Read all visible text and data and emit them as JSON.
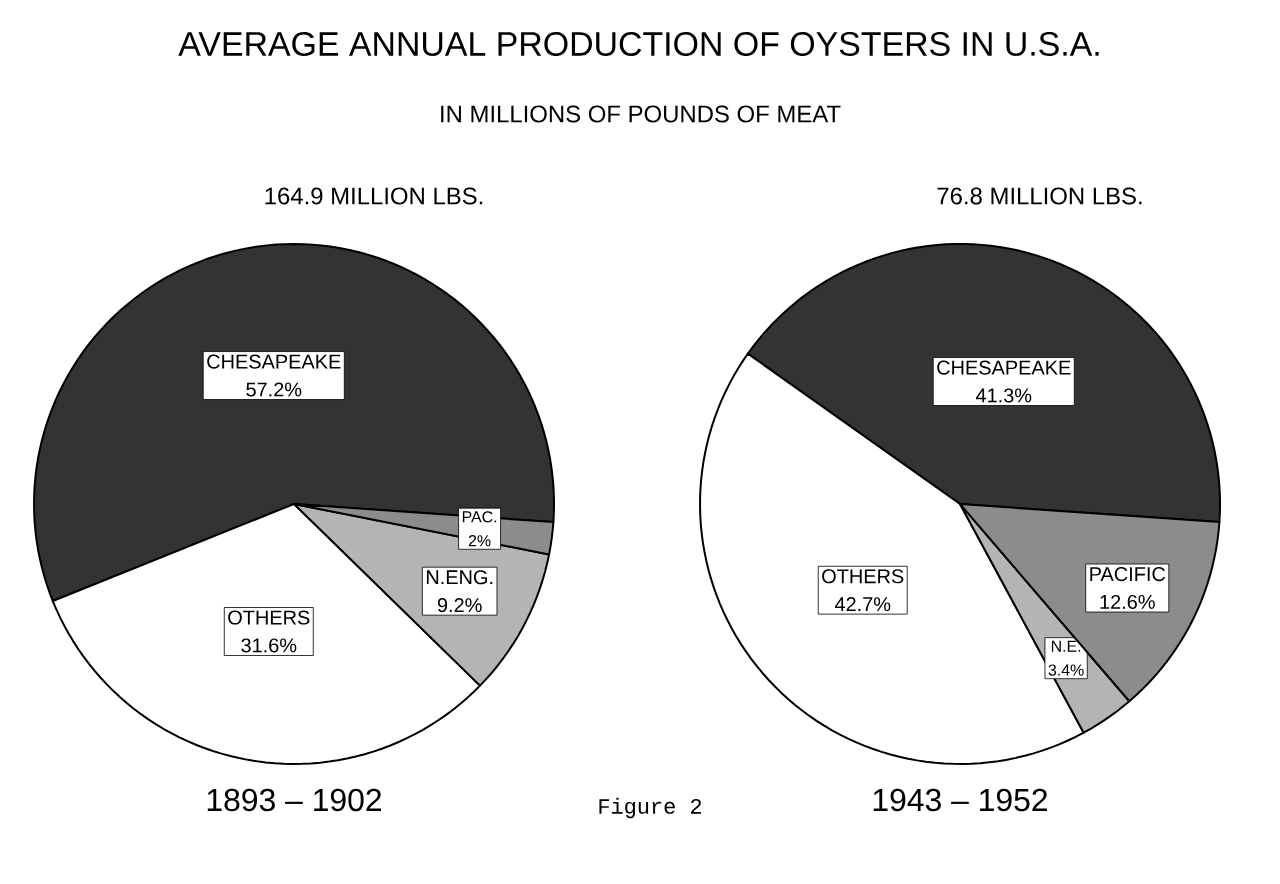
{
  "chart_data": [
    {
      "type": "pie",
      "title": "164.9 MILLION LBS.",
      "xlabel": "1893 – 1902",
      "categories": [
        "CHESAPEAKE",
        "OTHERS",
        "N.ENG.",
        "PAC."
      ],
      "values": [
        57.2,
        31.6,
        9.2,
        2
      ],
      "value_labels": [
        "57.2%",
        "31.6%",
        "9.2%",
        "2%"
      ],
      "colors": [
        "#333333",
        "#ffffff",
        "#b4b4b4",
        "#8c8c8c"
      ],
      "annotations": [
        "AVERAGE ANNUAL PRODUCTION OF OYSTERS IN U.S.A.",
        "IN MILLIONS OF POUNDS OF MEAT",
        "Figure 2"
      ]
    },
    {
      "type": "pie",
      "title": "76.8 MILLION LBS.",
      "xlabel": "1943 – 1952",
      "categories": [
        "CHESAPEAKE",
        "OTHERS",
        "N.E.",
        "PACIFIC"
      ],
      "values": [
        41.3,
        42.7,
        3.4,
        12.6
      ],
      "value_labels": [
        "41.3%",
        "42.7%",
        "3.4%",
        "12.6%"
      ],
      "colors": [
        "#333333",
        "#ffffff",
        "#b4b4b4",
        "#8c8c8c"
      ]
    }
  ]
}
